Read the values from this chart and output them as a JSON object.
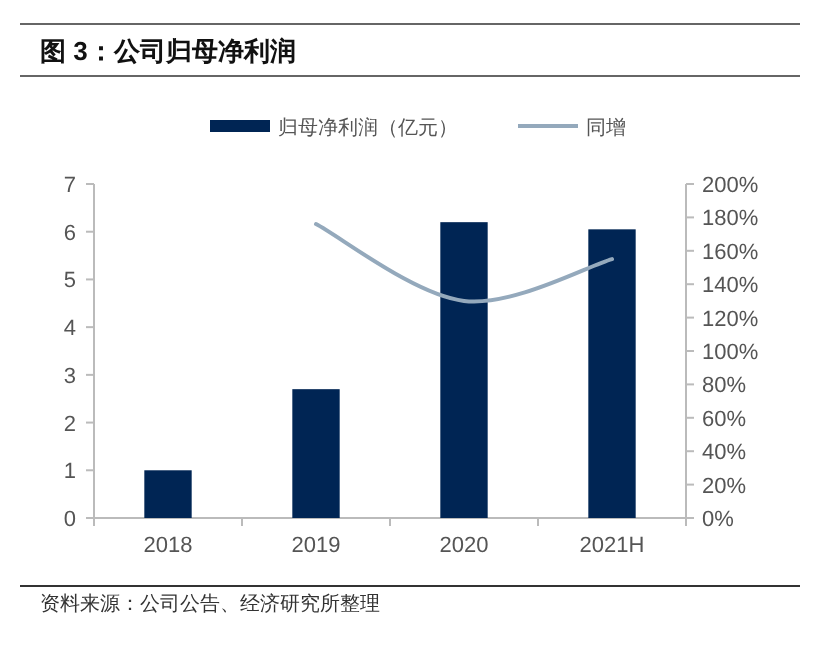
{
  "chart_data": {
    "type": "bar",
    "title": "图 3：公司归母净利润",
    "annotations": [
      "资料来源：公司公告、经济研究所整理"
    ],
    "categories": [
      "2018",
      "2019",
      "2020",
      "2021H"
    ],
    "series": [
      {
        "name": "归母净利润（亿元）",
        "color": "#002554",
        "values": [
          1.0,
          2.7,
          6.2,
          6.05
        ]
      },
      {
        "name": "同增",
        "type": "line",
        "axis": "y2",
        "color": "#94a9bc",
        "values": [
          null,
          176,
          130,
          155
        ]
      }
    ],
    "ylim": [
      0,
      7
    ],
    "yticks": [
      0,
      1,
      2,
      3,
      4,
      5,
      6,
      7
    ],
    "y2lim": [
      0,
      200
    ],
    "y2ticks": [
      {
        "value": 0,
        "label": "0%"
      },
      {
        "value": 20,
        "label": "20%"
      },
      {
        "value": 40,
        "label": "40%"
      },
      {
        "value": 60,
        "label": "60%"
      },
      {
        "value": 80,
        "label": "80%"
      },
      {
        "value": 100,
        "label": "100%"
      },
      {
        "value": 120,
        "label": "120%"
      },
      {
        "value": 140,
        "label": "140%"
      },
      {
        "value": 160,
        "label": "160%"
      },
      {
        "value": 180,
        "label": "180%"
      },
      {
        "value": 200,
        "label": "200%"
      }
    ],
    "legend": "top",
    "grid": false,
    "marker": "none",
    "line_style": "solid"
  }
}
